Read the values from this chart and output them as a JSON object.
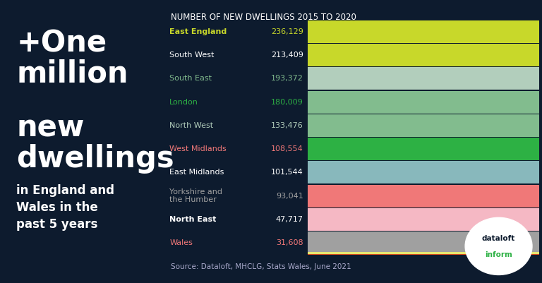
{
  "bg_color": "#0d1b2e",
  "title": "NUMBER OF NEW DWELLINGS 2015 TO 2020",
  "title_color": "#ffffff",
  "source_text": "Source: Dataloft, MHCLG, Stats Wales, June 2021",
  "source_color": "#aaaacc",
  "categories": [
    "East England",
    "South West",
    "South East",
    "London",
    "North West",
    "West Midlands",
    "East Midlands",
    "Yorkshire and\nthe Humber",
    "North East",
    "Wales"
  ],
  "values": [
    "236,129",
    "213,409",
    "193,372",
    "180,009",
    "133,476",
    "108,554",
    "101,544",
    "93,041",
    "47,717",
    "31,608"
  ],
  "bar_colors": [
    "#c8d82a",
    "#c8d82a",
    "#b2cebc",
    "#82bc8e",
    "#82bc8e",
    "#2db144",
    "#88b8bc",
    "#f07878",
    "#f5b8c4",
    "#a0a0a0"
  ],
  "bottom_strip_color": "#e8e870",
  "bottom_border_color": "#e05020",
  "label_colors": [
    "#c8d82a",
    "#ffffff",
    "#82bc8e",
    "#2db144",
    "#b2cebc",
    "#f07878",
    "#ffffff",
    "#a0a0a0",
    "#ffffff",
    "#f07878"
  ],
  "value_colors": [
    "#c8d82a",
    "#ffffff",
    "#82bc8e",
    "#2db144",
    "#b2cebc",
    "#f07878",
    "#ffffff",
    "#a0a0a0",
    "#ffffff",
    "#f07878"
  ],
  "logo_bg": "#ffffff",
  "logo_text1": "dataloft",
  "logo_text2": "inform",
  "logo_text1_color": "#0d1b2e",
  "logo_text2_color": "#2db144"
}
